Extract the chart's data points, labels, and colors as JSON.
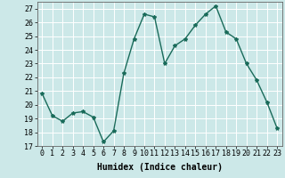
{
  "x": [
    0,
    1,
    2,
    3,
    4,
    5,
    6,
    7,
    8,
    9,
    10,
    11,
    12,
    13,
    14,
    15,
    16,
    17,
    18,
    19,
    20,
    21,
    22,
    23
  ],
  "y": [
    20.8,
    19.2,
    18.8,
    19.4,
    19.5,
    19.1,
    17.3,
    18.1,
    22.3,
    24.8,
    26.6,
    26.4,
    23.0,
    24.3,
    24.8,
    25.8,
    26.6,
    27.2,
    25.3,
    24.8,
    23.0,
    21.8,
    20.2,
    18.3
  ],
  "line_color": "#1a6b5a",
  "marker": "*",
  "marker_size": 3,
  "bg_color": "#cce8e8",
  "grid_color": "#ffffff",
  "xlabel": "Humidex (Indice chaleur)",
  "ylim": [
    17,
    27.5
  ],
  "xlim": [
    -0.5,
    23.5
  ],
  "yticks": [
    17,
    18,
    19,
    20,
    21,
    22,
    23,
    24,
    25,
    26,
    27
  ],
  "xticks": [
    0,
    1,
    2,
    3,
    4,
    5,
    6,
    7,
    8,
    9,
    10,
    11,
    12,
    13,
    14,
    15,
    16,
    17,
    18,
    19,
    20,
    21,
    22,
    23
  ],
  "xlabel_fontsize": 7,
  "tick_fontsize": 6,
  "line_width": 1.0
}
